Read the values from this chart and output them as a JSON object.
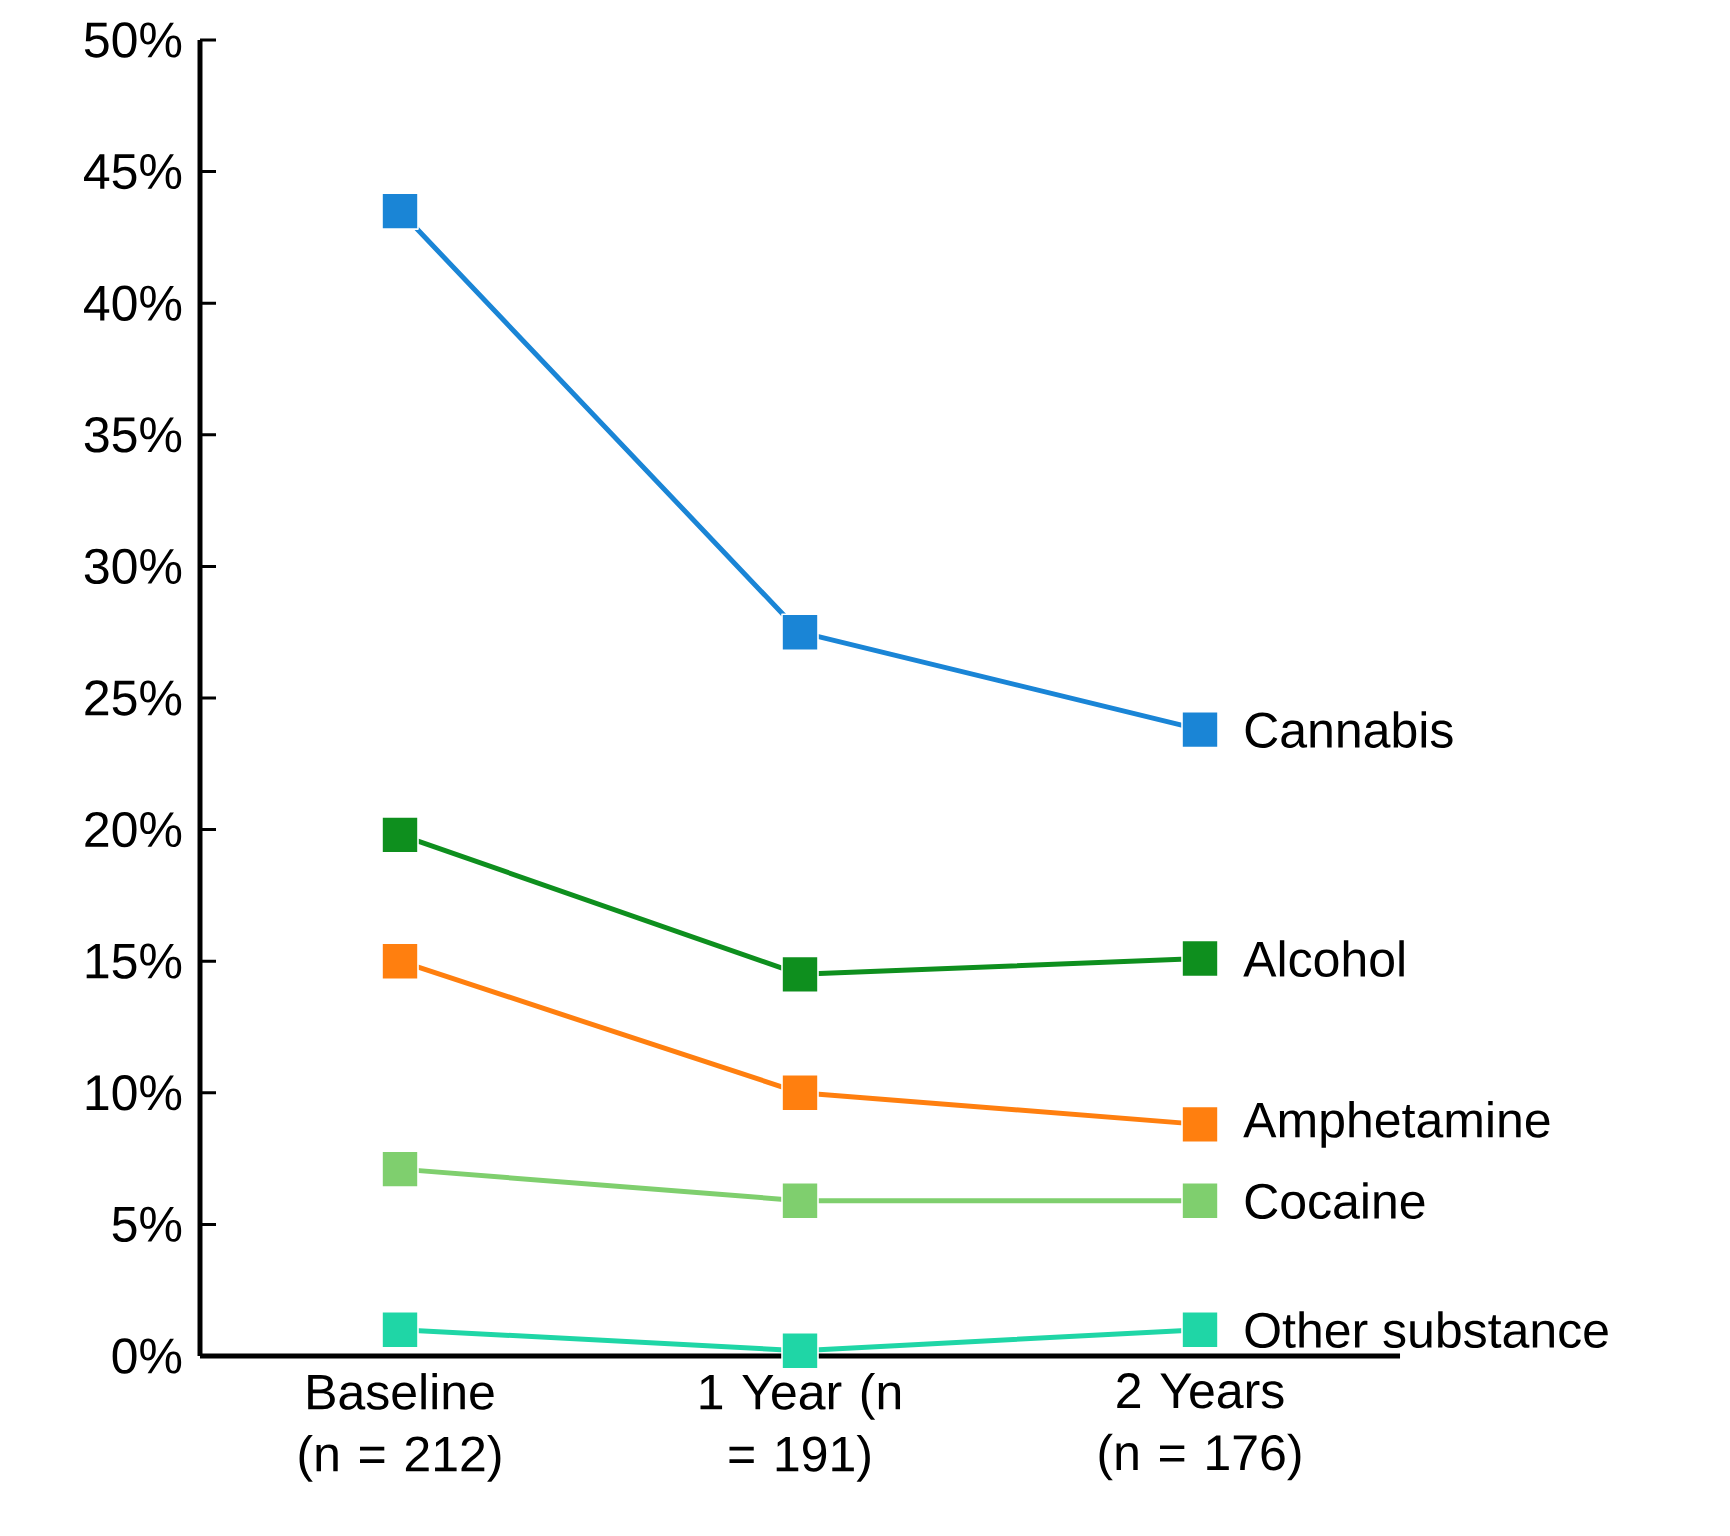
{
  "chart_data": {
    "type": "line",
    "marker": "square",
    "categories": [
      "Baseline (n = 212)",
      "1 Year (n = 191)",
      "2 Years (n = 176)"
    ],
    "ylim": [
      0,
      50
    ],
    "yticks": [
      {
        "value": 0,
        "label": "0%"
      },
      {
        "value": 5,
        "label": "5%"
      },
      {
        "value": 10,
        "label": "10%"
      },
      {
        "value": 15,
        "label": "15%"
      },
      {
        "value": 20,
        "label": "20%"
      },
      {
        "value": 25,
        "label": "25%"
      },
      {
        "value": 30,
        "label": "30%"
      },
      {
        "value": 35,
        "label": "35%"
      },
      {
        "value": 40,
        "label": "40%"
      },
      {
        "value": 45,
        "label": "45%"
      },
      {
        "value": 50,
        "label": "50%"
      }
    ],
    "series": [
      {
        "name": "Cannabis",
        "color": "#1a85d6",
        "values": [
          43.5,
          27.5,
          23.8
        ]
      },
      {
        "name": "Alcohol",
        "color": "#0e8f1e",
        "values": [
          19.8,
          14.5,
          15.1
        ]
      },
      {
        "name": "Amphetamine",
        "color": "#ff7f0f",
        "values": [
          15.0,
          10.0,
          8.8
        ]
      },
      {
        "name": "Cocaine",
        "color": "#7fcf6e",
        "values": [
          7.1,
          5.9,
          5.9
        ]
      },
      {
        "name": "Other substance",
        "color": "#1fd6a6",
        "values": [
          1.0,
          0.2,
          1.0
        ]
      }
    ]
  }
}
